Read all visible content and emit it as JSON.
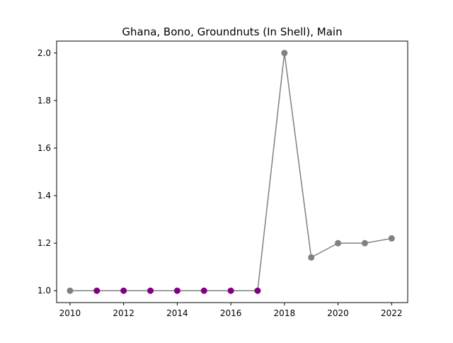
{
  "chart_data": {
    "type": "line",
    "title": "Ghana, Bono, Groundnuts (In Shell), Main",
    "xlabel": "",
    "ylabel": "",
    "xlim": [
      2009.5,
      2022.6
    ],
    "ylim": [
      0.95,
      2.05
    ],
    "xticks": [
      2010,
      2012,
      2014,
      2016,
      2018,
      2020,
      2022
    ],
    "xtick_labels": [
      "2010",
      "2012",
      "2014",
      "2016",
      "2018",
      "2020",
      "2022"
    ],
    "yticks": [
      1.0,
      1.2,
      1.4,
      1.6,
      1.8,
      2.0
    ],
    "ytick_labels": [
      "1.0",
      "1.2",
      "1.4",
      "1.6",
      "1.8",
      "2.0"
    ],
    "grid": false,
    "line_color": "#808080",
    "series": [
      {
        "x": [
          2010,
          2011,
          2012,
          2013,
          2014,
          2015,
          2016,
          2017,
          2018,
          2019,
          2020,
          2021,
          2022
        ],
        "y": [
          1.0,
          1.0,
          1.0,
          1.0,
          1.0,
          1.0,
          1.0,
          1.0,
          2.0,
          1.14,
          1.2,
          1.2,
          1.22
        ],
        "point_colors": [
          "#808080",
          "#800080",
          "#800080",
          "#800080",
          "#800080",
          "#800080",
          "#800080",
          "#800080",
          "#808080",
          "#808080",
          "#808080",
          "#808080",
          "#808080"
        ]
      }
    ]
  }
}
